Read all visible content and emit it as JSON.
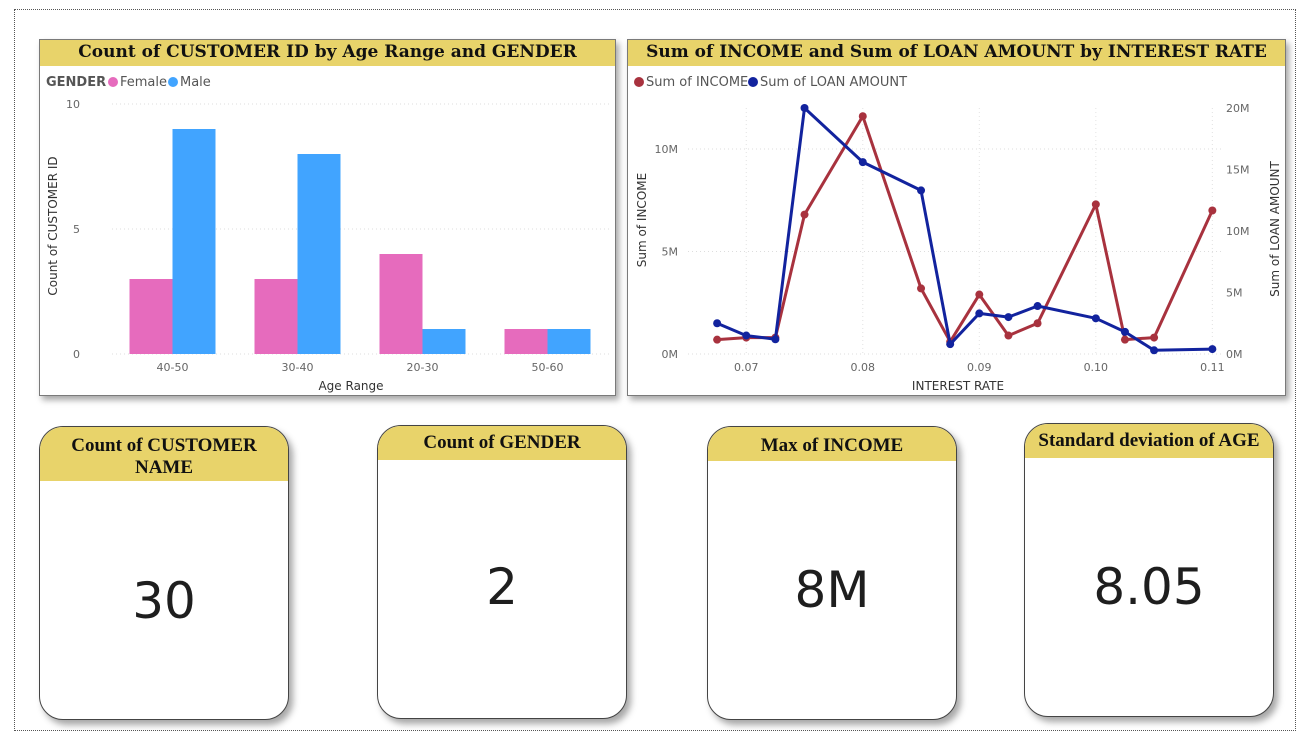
{
  "chart_data": [
    {
      "type": "bar",
      "title": "Count of CUSTOMER ID by Age Range and GENDER",
      "xlabel": "Age Range",
      "ylabel": "Count of CUSTOMER ID",
      "ylim": [
        0,
        10
      ],
      "yticks": [
        "0",
        "5",
        "10"
      ],
      "legend_title": "GENDER",
      "legend_position": "top-left",
      "categories": [
        "40-50",
        "30-40",
        "20-30",
        "50-60"
      ],
      "series": [
        {
          "name": "Female",
          "values": [
            3,
            3,
            4,
            1
          ],
          "color": "#e66bbd"
        },
        {
          "name": "Male",
          "values": [
            9,
            8,
            1,
            1
          ],
          "color": "#41a4ff"
        }
      ],
      "grid": true
    },
    {
      "type": "line",
      "title": "Sum of INCOME and Sum of LOAN AMOUNT by INTEREST RATE",
      "xlabel": "INTEREST RATE",
      "ylabel": "Sum of INCOME",
      "y2label": "Sum of LOAN AMOUNT",
      "xlim": [
        0.065,
        0.111
      ],
      "xticks": [
        {
          "v": 0.07,
          "label": "0.07"
        },
        {
          "v": 0.08,
          "label": "0.08"
        },
        {
          "v": 0.09,
          "label": "0.09"
        },
        {
          "v": 0.1,
          "label": "0.10"
        },
        {
          "v": 0.11,
          "label": "0.11"
        }
      ],
      "ylim": [
        0,
        12000000
      ],
      "yticks": [
        {
          "v": 0,
          "label": "0M"
        },
        {
          "v": 5000000,
          "label": "5M"
        },
        {
          "v": 10000000,
          "label": "10M"
        }
      ],
      "y2lim": [
        0,
        20000000
      ],
      "y2ticks": [
        {
          "v": 0,
          "label": "0M"
        },
        {
          "v": 5000000,
          "label": "5M"
        },
        {
          "v": 10000000,
          "label": "10M"
        },
        {
          "v": 15000000,
          "label": "15M"
        },
        {
          "v": 20000000,
          "label": "20M"
        }
      ],
      "legend_position": "top-left",
      "x": [
        0.0675,
        0.07,
        0.0725,
        0.075,
        0.08,
        0.085,
        0.0875,
        0.09,
        0.0925,
        0.095,
        0.1,
        0.1025,
        0.105,
        0.11
      ],
      "series": [
        {
          "name": "Sum of INCOME",
          "axis": "left",
          "color": "#a8323e",
          "values": [
            700000,
            800000,
            800000,
            6800000,
            11600000,
            3200000,
            600000,
            2900000,
            900000,
            1500000,
            7300000,
            700000,
            800000,
            7000000
          ]
        },
        {
          "name": "Sum of LOAN AMOUNT",
          "axis": "right",
          "color": "#12239e",
          "values": [
            2500000,
            1500000,
            1200000,
            20000000,
            15600000,
            13300000,
            800000,
            3300000,
            3000000,
            3900000,
            2900000,
            1800000,
            300000,
            400000
          ]
        }
      ],
      "grid": true
    }
  ],
  "cards": [
    {
      "title": "Count of CUSTOMER NAME",
      "value": "30"
    },
    {
      "title": "Count of GENDER",
      "value": "2"
    },
    {
      "title": "Max of INCOME",
      "value": "8M"
    },
    {
      "title": "Standard deviation of AGE",
      "value": "8.05"
    }
  ]
}
